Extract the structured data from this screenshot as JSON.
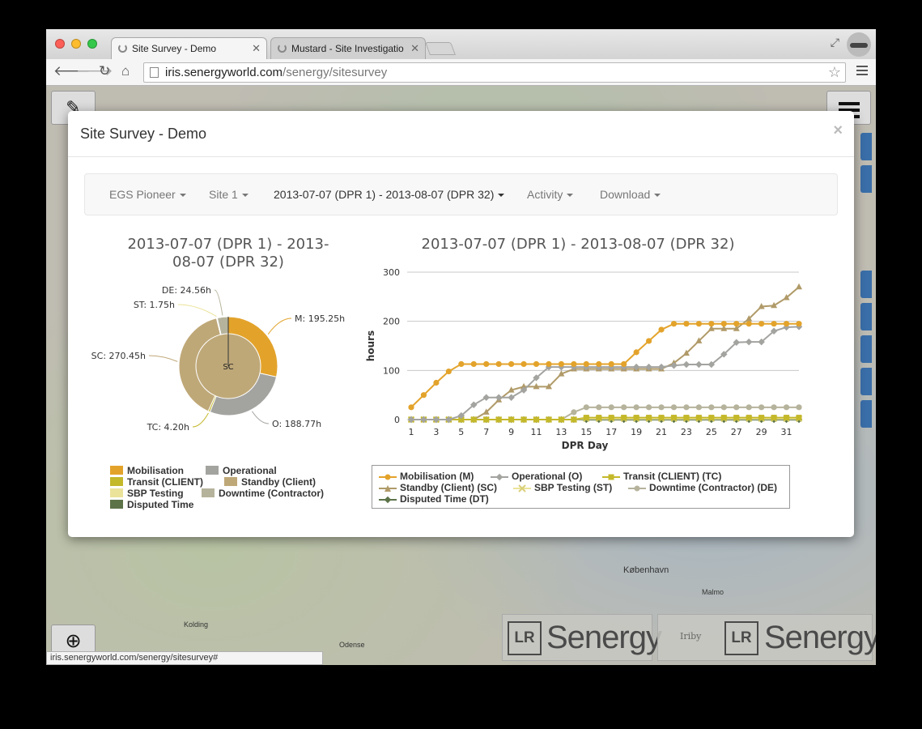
{
  "browser": {
    "tabs": [
      {
        "title": "Site Survey - Demo",
        "active": true
      },
      {
        "title": "Mustard - Site Investigatio",
        "active": false
      }
    ],
    "url_host": "iris.senergyworld.com",
    "url_path": "/senergy/sitesurvey",
    "status_url": "iris.senergyworld.com/senergy/sitesurvey#"
  },
  "map": {
    "labels": [
      "København",
      "Malmo",
      "Odense",
      "Kolding"
    ],
    "logos": {
      "brand": "Senergy",
      "lr": "LR",
      "partner": "Iriby"
    }
  },
  "modal": {
    "title": "Site Survey - Demo",
    "close": "×",
    "nav": [
      "EGS Pioneer",
      "Site 1",
      "2013-07-07 (DPR 1) - 2013-08-07 (DPR 32)",
      "Activity",
      "Download"
    ]
  },
  "pie_title_line1": "2013-07-07 (DPR 1) - 2013-",
  "pie_title_line2": "08-07 (DPR 32)",
  "line_title": "2013-07-07 (DPR 1) - 2013-08-07 (DPR 32)",
  "colors": {
    "mobilisation": "#e3a32b",
    "operational": "#a3a3a0",
    "transit": "#c4b82b",
    "standby": "#bfa878",
    "sbp": "#ebe39a",
    "downtime": "#b6b39c",
    "disputed": "#5c7348"
  },
  "pie_legend": [
    "Mobilisation",
    "Operational",
    "Transit (CLIENT)",
    "Standby (Client)",
    "SBP Testing",
    "Downtime (Contractor)",
    "Disputed Time"
  ],
  "line_legend": [
    "Mobilisation (M)",
    "Operational (O)",
    "Transit (CLIENT) (TC)",
    "Standby (Client) (SC)",
    "SBP Testing (ST)",
    "Downtime (Contractor) (DE)",
    "Disputed Time (DT)"
  ],
  "chart_data": [
    {
      "type": "pie",
      "title": "2013-07-07 (DPR 1) - 2013-08-07 (DPR 32)",
      "center_label": "SC",
      "slices": [
        {
          "label": "M: 195.25h",
          "name": "Mobilisation",
          "value": 195.25
        },
        {
          "label": "O: 188.77h",
          "name": "Operational",
          "value": 188.77
        },
        {
          "label": "TC: 4.20h",
          "name": "Transit (CLIENT)",
          "value": 4.2
        },
        {
          "label": "SC: 270.45h",
          "name": "Standby (Client)",
          "value": 270.45
        },
        {
          "label": "ST: 1.75h",
          "name": "SBP Testing",
          "value": 1.75
        },
        {
          "label": "DE: 24.56h",
          "name": "Downtime (Contractor)",
          "value": 24.56
        }
      ]
    },
    {
      "type": "line",
      "title": "2013-07-07 (DPR 1) - 2013-08-07 (DPR 32)",
      "xlabel": "DPR Day",
      "ylabel": "hours",
      "xlim": [
        1,
        32
      ],
      "ylim": [
        0,
        300
      ],
      "x_ticks": [
        1,
        3,
        5,
        7,
        9,
        11,
        13,
        15,
        17,
        19,
        21,
        23,
        25,
        27,
        29,
        31
      ],
      "y_ticks": [
        0,
        100,
        200,
        300
      ],
      "x": [
        1,
        2,
        3,
        4,
        5,
        6,
        7,
        8,
        9,
        10,
        11,
        12,
        13,
        14,
        15,
        16,
        17,
        18,
        19,
        20,
        21,
        22,
        23,
        24,
        25,
        26,
        27,
        28,
        29,
        30,
        31,
        32
      ],
      "series": [
        {
          "name": "Mobilisation (M)",
          "marker": "circle",
          "color": "#e3a32b",
          "values": [
            25,
            50,
            75,
            98,
            113,
            113,
            113,
            113,
            113,
            113,
            113,
            113,
            113,
            113,
            113,
            113,
            113,
            113,
            137,
            160,
            183,
            195,
            195,
            195,
            195,
            195,
            195,
            195,
            195,
            195,
            195,
            195
          ]
        },
        {
          "name": "Operational (O)",
          "marker": "diamond",
          "color": "#a3a3a0",
          "values": [
            0,
            0,
            0,
            0,
            8,
            30,
            45,
            45,
            45,
            60,
            85,
            107,
            107,
            107,
            107,
            107,
            107,
            107,
            107,
            107,
            107,
            110,
            112,
            112,
            112,
            133,
            157,
            158,
            158,
            180,
            188,
            189
          ]
        },
        {
          "name": "Transit (CLIENT) (TC)",
          "marker": "square",
          "color": "#c4b82b",
          "values": [
            0,
            0,
            0,
            0,
            0,
            0,
            0,
            0,
            0,
            0,
            0,
            0,
            0,
            0,
            4,
            4,
            4,
            4,
            4,
            4,
            4,
            4,
            4,
            4,
            4,
            4,
            4,
            4,
            4,
            4,
            4,
            4
          ]
        },
        {
          "name": "Standby (Client) (SC)",
          "marker": "triangle",
          "color": "#b09a68",
          "values": [
            0,
            0,
            0,
            0,
            0,
            0,
            15,
            40,
            60,
            67,
            67,
            67,
            93,
            103,
            103,
            103,
            103,
            103,
            103,
            103,
            103,
            115,
            135,
            160,
            185,
            185,
            185,
            205,
            230,
            232,
            248,
            270
          ]
        },
        {
          "name": "SBP Testing (ST)",
          "marker": "cross",
          "color": "#ebe39a",
          "values": [
            0,
            0,
            0,
            0,
            0,
            0,
            0,
            0,
            0,
            0,
            0,
            0,
            0,
            0,
            1.75,
            1.75,
            1.75,
            1.75,
            1.75,
            1.75,
            1.75,
            1.75,
            1.75,
            1.75,
            1.75,
            1.75,
            1.75,
            1.75,
            1.75,
            1.75,
            1.75,
            1.75
          ]
        },
        {
          "name": "Downtime (Contractor) (DE)",
          "marker": "circle",
          "color": "#b6b39c",
          "values": [
            0,
            0,
            0,
            0,
            0,
            0,
            0,
            0,
            0,
            0,
            0,
            0,
            0,
            15,
            25,
            25,
            25,
            25,
            25,
            25,
            25,
            25,
            25,
            25,
            25,
            25,
            25,
            25,
            25,
            25,
            25,
            25
          ]
        },
        {
          "name": "Disputed Time (DT)",
          "marker": "diamond",
          "color": "#5c7348",
          "values": [
            0,
            0,
            0,
            0,
            0,
            0,
            0,
            0,
            0,
            0,
            0,
            0,
            0,
            0,
            0,
            0,
            0,
            0,
            0,
            0,
            0,
            0,
            0,
            0,
            0,
            0,
            0,
            0,
            0,
            0,
            0,
            0
          ]
        }
      ]
    }
  ]
}
